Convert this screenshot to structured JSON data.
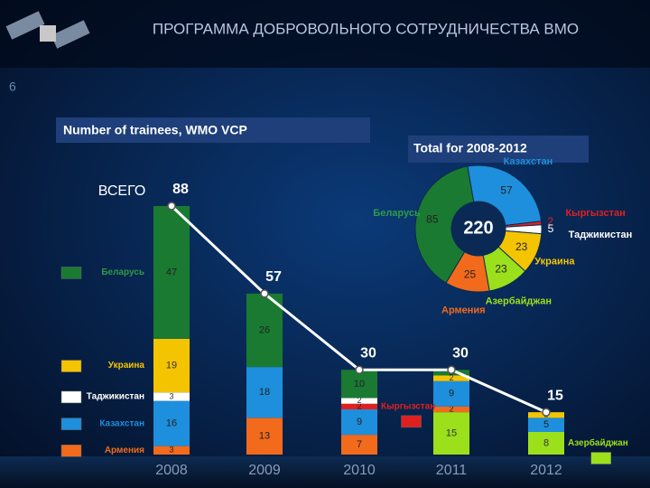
{
  "header": {
    "title": "ПРОГРАММА ДОБРОВОЛЬНОГО СОТРУДНИЧЕСТВА ВМО",
    "page_number": "6"
  },
  "chart_data": [
    {
      "type": "stacked-bar",
      "title": "Number of trainees, WMO VCP",
      "categories": [
        "2008",
        "2009",
        "2010",
        "2011",
        "2012"
      ],
      "series": [
        {
          "name": "Азербайджан",
          "color": "#9be01b",
          "values": [
            null,
            null,
            null,
            15,
            8
          ]
        },
        {
          "name": "Армения",
          "color": "#f26a1b",
          "values": [
            3,
            13,
            7,
            2,
            null
          ]
        },
        {
          "name": "Казахстан",
          "color": "#1e8fdc",
          "values": [
            16,
            18,
            9,
            9,
            5
          ]
        },
        {
          "name": "Кыргызстан",
          "color": "#e02020",
          "values": [
            null,
            null,
            2,
            null,
            null
          ]
        },
        {
          "name": "Таджикистан",
          "color": "#ffffff",
          "values": [
            3,
            null,
            2,
            null,
            null
          ]
        },
        {
          "name": "Украина",
          "color": "#f5c400",
          "values": [
            19,
            null,
            null,
            2,
            2
          ]
        },
        {
          "name": "Беларусь",
          "color": "#1a7a32",
          "values": [
            47,
            26,
            10,
            2,
            null
          ]
        }
      ],
      "totals": {
        "name": "ВСЕГО",
        "color": "#ffffff",
        "values": [
          88,
          57,
          30,
          30,
          15
        ]
      }
    },
    {
      "type": "donut",
      "title": "Total for 2008-2012",
      "total": 220,
      "categories": [
        "Казахстан",
        "Кыргызстан",
        "Таджикистан",
        "Украина",
        "Азербайджан",
        "Армения",
        "Беларусь"
      ],
      "values": [
        57,
        2,
        5,
        23,
        23,
        25,
        85
      ],
      "colors": [
        "#1e8fdc",
        "#e02020",
        "#ffffff",
        "#f5c400",
        "#9be01b",
        "#f26a1b",
        "#1a7a32"
      ]
    }
  ]
}
